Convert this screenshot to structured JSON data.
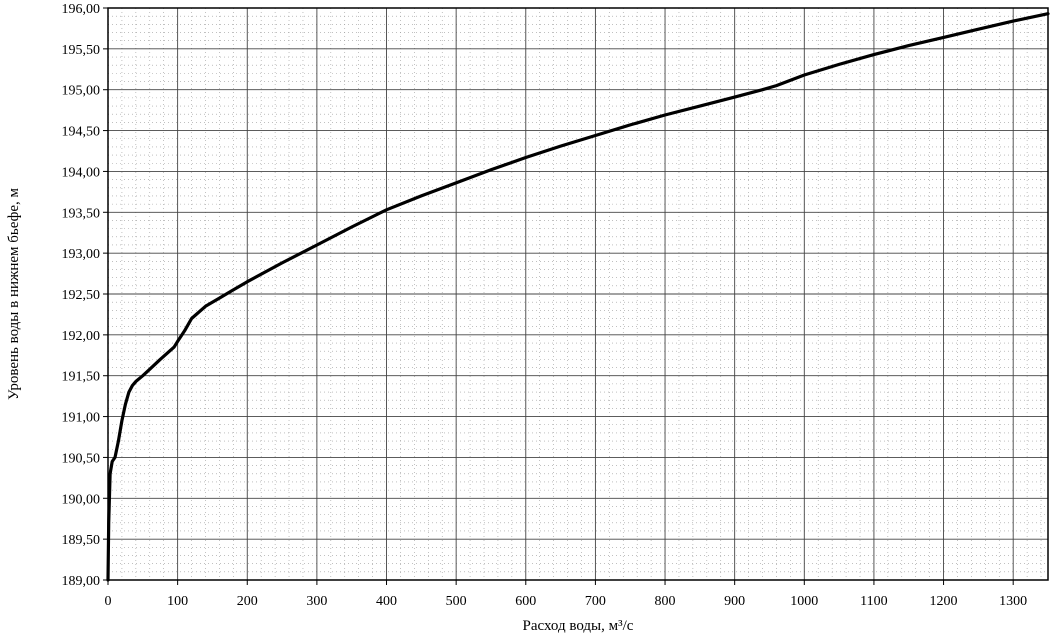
{
  "chart_data": {
    "type": "line",
    "title": "",
    "xlabel": "Расход воды, м³/с",
    "ylabel": "Уровень воды в нижнем бьефе, м",
    "xlim": [
      0,
      1350
    ],
    "ylim": [
      189.0,
      196.0
    ],
    "grid": true,
    "x_ticks": [
      "0",
      "100",
      "200",
      "300",
      "400",
      "500",
      "600",
      "700",
      "800",
      "900",
      "1000",
      "1100",
      "1200",
      "1300"
    ],
    "y_ticks": [
      "189,00",
      "189,50",
      "190,00",
      "190,50",
      "191,00",
      "191,50",
      "192,00",
      "192,50",
      "193,00",
      "193,50",
      "194,00",
      "194,50",
      "195,00",
      "195,50",
      "196,00"
    ],
    "series": [
      {
        "color": "#000000",
        "x": [
          0,
          1,
          3,
          6,
          10,
          15,
          20,
          25,
          30,
          35,
          40,
          50,
          60,
          75,
          95,
          100,
          110,
          120,
          140,
          160,
          180,
          200,
          250,
          300,
          350,
          400,
          450,
          500,
          550,
          600,
          650,
          700,
          750,
          800,
          850,
          900,
          940,
          960,
          1000,
          1050,
          1100,
          1150,
          1200,
          1250,
          1300,
          1350
        ],
        "y": [
          189.0,
          189.7,
          190.3,
          190.45,
          190.5,
          190.7,
          190.95,
          191.15,
          191.3,
          191.38,
          191.43,
          191.5,
          191.58,
          191.7,
          191.85,
          191.92,
          192.05,
          192.2,
          192.35,
          192.45,
          192.55,
          192.65,
          192.88,
          193.1,
          193.32,
          193.53,
          193.7,
          193.86,
          194.02,
          194.17,
          194.31,
          194.44,
          194.57,
          194.69,
          194.8,
          194.91,
          195.0,
          195.05,
          195.18,
          195.31,
          195.43,
          195.54,
          195.64,
          195.74,
          195.84,
          195.93
        ]
      }
    ]
  }
}
